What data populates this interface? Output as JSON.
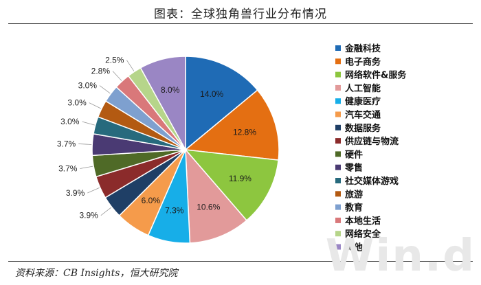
{
  "header": {
    "title": "图表：全球独角兽行业分布情况"
  },
  "footer": {
    "source": "资料来源：CB Insights，恒大研究院",
    "watermark": "Win.d"
  },
  "chart_data": {
    "type": "pie",
    "title": "图表：全球独角兽行业分布情况",
    "legend_position": "right",
    "slices": [
      {
        "label": "金融科技",
        "value": 14.0,
        "display": "14.0%",
        "color": "#1f6bb5"
      },
      {
        "label": "电子商务",
        "value": 12.8,
        "display": "12.8%",
        "color": "#e46f12"
      },
      {
        "label": "网络软件&服务",
        "value": 11.9,
        "display": "11.9%",
        "color": "#8dc63f"
      },
      {
        "label": "人工智能",
        "value": 10.6,
        "display": "10.6%",
        "color": "#e29a9a"
      },
      {
        "label": "健康医疗",
        "value": 7.3,
        "display": "7.3%",
        "color": "#17aee8"
      },
      {
        "label": "汽车交通",
        "value": 6.0,
        "display": "6.0%",
        "color": "#f59b4b"
      },
      {
        "label": "数据服务",
        "value": 3.9,
        "display": "3.9%",
        "color": "#1f3f66"
      },
      {
        "label": "供应链与物流",
        "value": 3.9,
        "display": "3.9%",
        "color": "#8b2b2b"
      },
      {
        "label": "硬件",
        "value": 3.7,
        "display": "3.7%",
        "color": "#4f6a27"
      },
      {
        "label": "零售",
        "value": 3.7,
        "display": "3.7%",
        "color": "#4a3a73"
      },
      {
        "label": "社交媒体游戏",
        "value": 3.0,
        "display": "3.0%",
        "color": "#276a7d"
      },
      {
        "label": "旅游",
        "value": 3.0,
        "display": "3.0%",
        "color": "#b35a12"
      },
      {
        "label": "教育",
        "value": 3.0,
        "display": "3.0%",
        "color": "#7ea0cf"
      },
      {
        "label": "本地生活",
        "value": 2.8,
        "display": "2.8%",
        "color": "#d9787a"
      },
      {
        "label": "网络安全",
        "value": 2.5,
        "display": "2.5%",
        "color": "#b6d58a"
      },
      {
        "label": "其他",
        "value": 8.0,
        "display": "8.0%",
        "color": "#9a86c4"
      }
    ]
  }
}
